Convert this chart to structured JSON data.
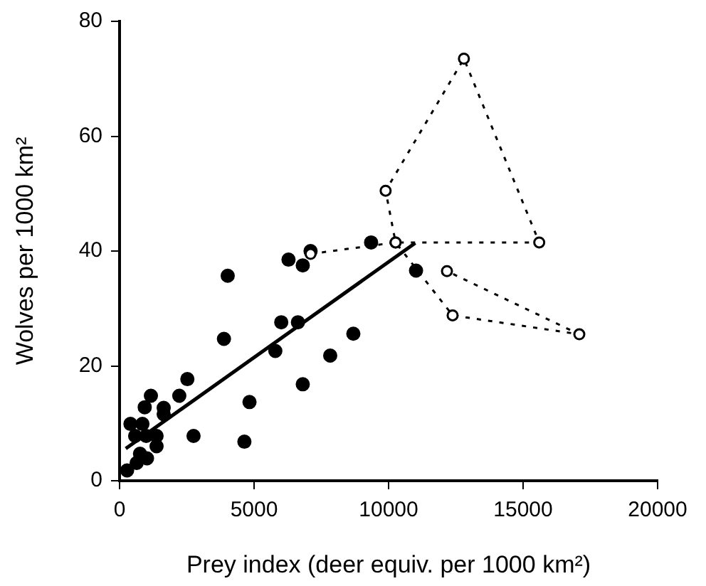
{
  "chart_data": {
    "type": "scatter",
    "xlabel": "Prey index (deer equiv. per 1000 km²)",
    "ylabel": "Wolves per 1000 km²",
    "xlim": [
      0,
      20000
    ],
    "xticks": [
      0,
      5000,
      10000,
      15000,
      20000
    ],
    "ylim": [
      0,
      80
    ],
    "yticks": [
      0,
      20,
      40,
      60,
      80
    ],
    "grid": false,
    "legend": false,
    "series": [
      {
        "type": "scatter",
        "color": "#000000",
        "marker": "circle",
        "x": [
          280,
          635,
          1020,
          760,
          1375,
          1375,
          990,
          580,
          405,
          850,
          935,
          1165,
          1640,
          1640,
          2220,
          2520,
          2750,
          3880,
          4020,
          4640,
          4830,
          5790,
          6010,
          6630,
          6810,
          6280,
          6810,
          7830,
          8690,
          9350,
          11020,
          7100
        ],
        "values": [
          1.8,
          3.1,
          3.9,
          4.7,
          6,
          7.8,
          7.8,
          7.8,
          9.9,
          9.9,
          12.8,
          14.8,
          12.7,
          11.6,
          14.8,
          17.7,
          7.8,
          24.7,
          35.7,
          6.8,
          13.7,
          22.6,
          27.6,
          27.6,
          16.8,
          38.5,
          37.5,
          21.8,
          25.6,
          41.5,
          36.6,
          40
        ]
      },
      {
        "type": "line",
        "color": "#000000",
        "marker": "circle",
        "line_style": "dashed",
        "x": [
          7100,
          10260,
          9890,
          12800,
          15600,
          10260,
          12380,
          17090,
          12170
        ],
        "values": [
          39.5,
          41.5,
          50.5,
          73.5,
          41.5,
          41.5,
          28.8,
          25.5,
          36.5
        ]
      },
      {
        "type": "line",
        "color": "#000000",
        "marker": "none",
        "line_style": "solid",
        "x": [
          230,
          10990
        ],
        "values": [
          5.6,
          41.4
        ]
      }
    ]
  }
}
